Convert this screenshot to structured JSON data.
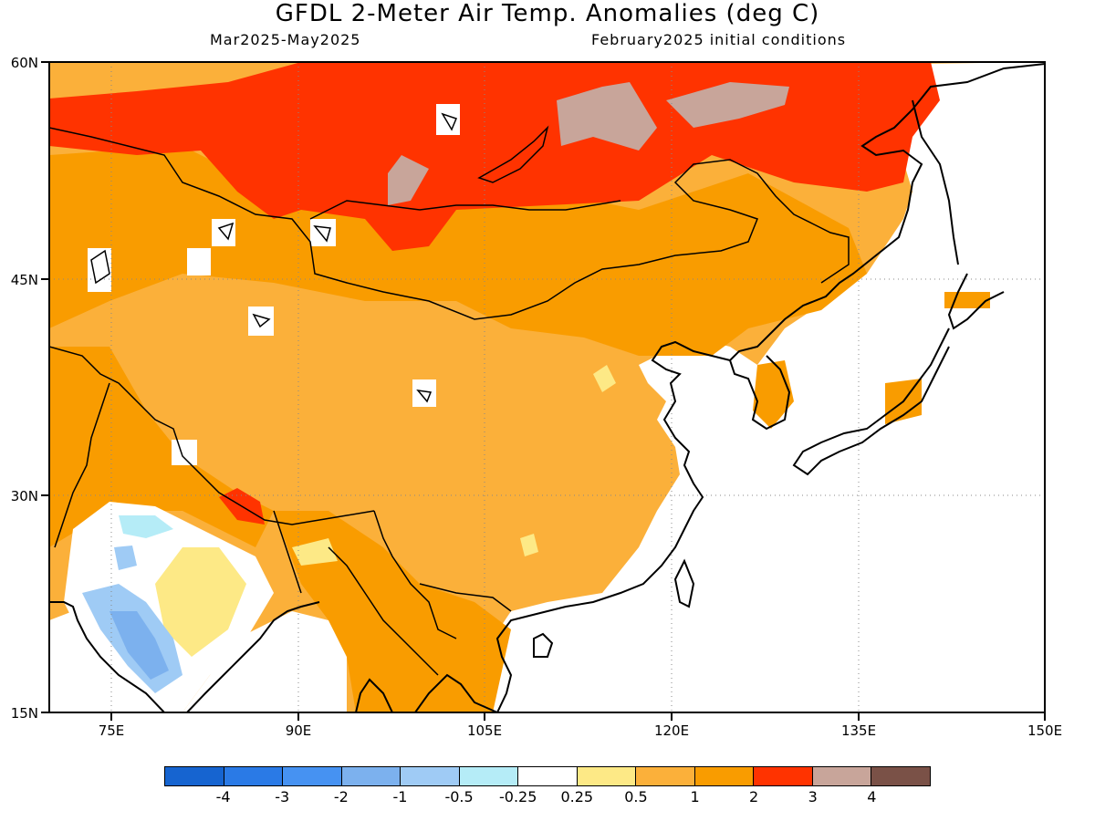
{
  "header": {
    "title": "GFDL 2-Meter Air Temp. Anomalies (deg C)",
    "period": "Mar2025-May2025",
    "initial_conditions": "February2025 initial conditions"
  },
  "map": {
    "lon_range": [
      70,
      150
    ],
    "lat_range": [
      15,
      60
    ],
    "lon_ticks": [
      "75E",
      "90E",
      "105E",
      "120E",
      "135E",
      "150E"
    ],
    "lat_ticks": [
      "60N",
      "45N",
      "30N",
      "15N"
    ],
    "background_color": "#fbb03a",
    "regions": [
      {
        "name": "northern-high-anomaly",
        "level": "2 to 3",
        "color": "#ff3300"
      },
      {
        "name": "siberia-extreme",
        "level": "3 to 4",
        "color": "#c8a59a"
      },
      {
        "name": "mongolia-steppe",
        "level": "1 to 2",
        "color": "#f99c00"
      },
      {
        "name": "tibet-plateau",
        "level": "0.5 to 1",
        "color": "#fbb03a"
      },
      {
        "name": "india-cool-pool",
        "level": "-1 to -0.5",
        "color": "#a6d7f7"
      },
      {
        "name": "india-cold-core",
        "level": "-2 to -1",
        "color": "#7cb1ee"
      }
    ]
  },
  "colorbar": {
    "colors": [
      "#1664d0",
      "#2a7ae6",
      "#4692f2",
      "#7cb1ee",
      "#9fcbf5",
      "#b5ecf7",
      "#ffffff",
      "#fde986",
      "#fbb03a",
      "#f99c00",
      "#ff3300",
      "#c8a59a",
      "#7a5147"
    ],
    "labels": [
      "-4",
      "-3",
      "-2",
      "-1",
      "-0.5",
      "-0.25",
      "0.25",
      "0.5",
      "1",
      "2",
      "3",
      "4"
    ]
  }
}
